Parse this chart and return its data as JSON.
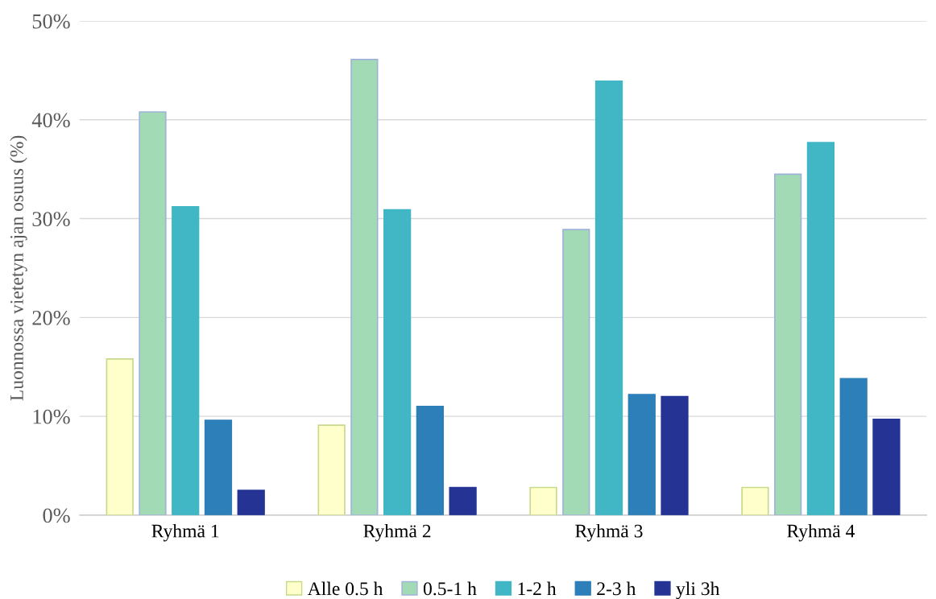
{
  "chart_data": {
    "type": "bar",
    "ylabel": "Luonnossa vietetyn ajan osuus (%)",
    "categories": [
      "Ryhmä 1",
      "Ryhmä 2",
      "Ryhmä 3",
      "Ryhmä 4"
    ],
    "series": [
      {
        "name": "Alle 0.5 h",
        "color": "#ffffcc",
        "values": [
          15.8,
          9.1,
          2.8,
          2.8
        ]
      },
      {
        "name": "0.5-1 h",
        "color": "#a1dab4",
        "values": [
          40.8,
          46.1,
          28.9,
          34.5
        ]
      },
      {
        "name": "1-2 h",
        "color": "#41b6c4",
        "values": [
          31.2,
          30.9,
          43.9,
          37.7
        ]
      },
      {
        "name": "2-3 h",
        "color": "#2c7fb8",
        "values": [
          9.6,
          11.0,
          12.2,
          13.8
        ]
      },
      {
        "name": "yli 3h",
        "color": "#253494",
        "values": [
          2.5,
          2.8,
          12.0,
          9.7
        ]
      }
    ],
    "ylim": [
      0,
      50
    ],
    "yticks": [
      {
        "value": 0,
        "label": "0%"
      },
      {
        "value": 10,
        "label": "10%"
      },
      {
        "value": 20,
        "label": "20%"
      },
      {
        "value": 30,
        "label": "30%"
      },
      {
        "value": 40,
        "label": "40%"
      },
      {
        "value": 50,
        "label": "50%"
      }
    ],
    "grid": "y",
    "legend": "bottom"
  }
}
